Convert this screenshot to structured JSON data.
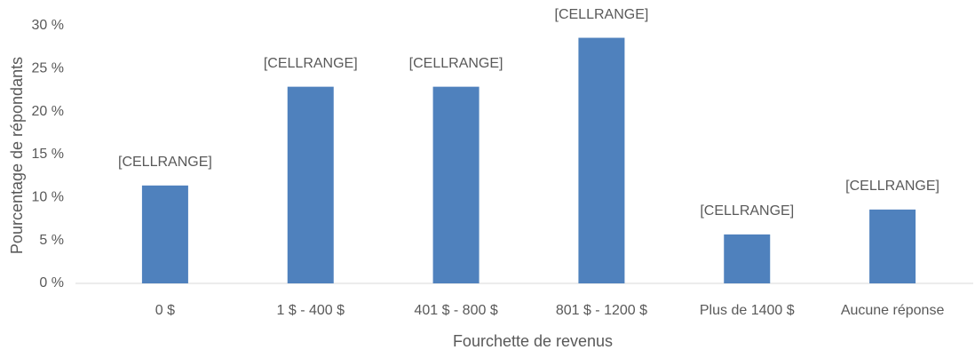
{
  "chart_data": {
    "type": "bar",
    "x_label": "Fourchette de revenus",
    "y_label": "Pourcentage de répondants",
    "categories": [
      "0 $",
      "1 $ - 400 $",
      "401 $ - 800 $",
      "801 $ - 1200 $",
      "Plus de 1400 $",
      "Aucune réponse"
    ],
    "values": [
      11.4,
      22.9,
      22.9,
      28.6,
      5.7,
      8.6
    ],
    "value_labels": [
      "[CELLRANGE]",
      "[CELLRANGE]",
      "[CELLRANGE]",
      "[CELLRANGE]",
      "[CELLRANGE]",
      "[CELLRANGE]"
    ],
    "color": "#4f81bd",
    "ylim": [
      0,
      30
    ],
    "yticks": [
      {
        "value": 0,
        "label": "0 %"
      },
      {
        "value": 5,
        "label": "5 %"
      },
      {
        "value": 10,
        "label": "10 %"
      },
      {
        "value": 15,
        "label": "15 %"
      },
      {
        "value": 20,
        "label": "20 %"
      },
      {
        "value": 25,
        "label": "25 %"
      },
      {
        "value": 30,
        "label": "30 %"
      }
    ],
    "grid": false
  }
}
